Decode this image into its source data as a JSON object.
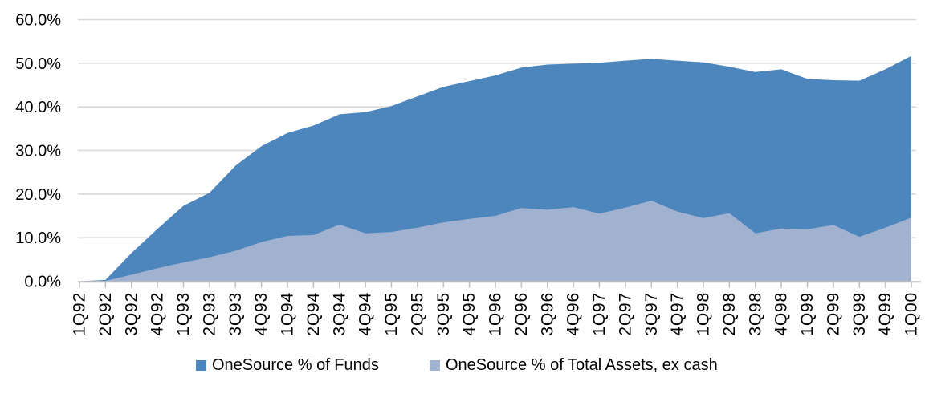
{
  "chart_data": {
    "type": "area",
    "title": "",
    "xlabel": "",
    "ylabel": "",
    "x_categories": [
      "1Q92",
      "2Q92",
      "3Q92",
      "4Q92",
      "1Q93",
      "2Q93",
      "3Q93",
      "4Q93",
      "1Q94",
      "2Q94",
      "3Q94",
      "4Q94",
      "1Q95",
      "2Q95",
      "3Q95",
      "4Q95",
      "1Q96",
      "2Q96",
      "3Q96",
      "4Q96",
      "1Q97",
      "2Q97",
      "3Q97",
      "4Q97",
      "1Q98",
      "2Q98",
      "3Q98",
      "4Q98",
      "1Q99",
      "2Q99",
      "3Q99",
      "4Q99",
      "1Q00"
    ],
    "series": [
      {
        "name": "OneSource % of Funds",
        "color": "#4D85BD",
        "values": [
          0.0,
          0.3,
          6.5,
          12.0,
          17.3,
          20.3,
          26.5,
          31.0,
          34.0,
          35.7,
          38.3,
          38.8,
          40.2,
          42.4,
          44.6,
          45.9,
          47.2,
          49.0,
          49.7,
          49.9,
          50.1,
          50.6,
          51.0,
          50.6,
          50.2,
          49.2,
          48.0,
          48.6,
          46.4,
          46.1,
          46.0,
          48.6,
          51.7
        ]
      },
      {
        "name": "OneSource % of Total Assets, ex cash",
        "color": "#A0B2D0",
        "values": [
          0.0,
          0.1,
          1.5,
          3.0,
          4.3,
          5.5,
          7.0,
          9.0,
          10.4,
          10.6,
          13.0,
          11.0,
          11.3,
          12.3,
          13.5,
          14.3,
          15.0,
          16.8,
          16.4,
          17.0,
          15.5,
          16.9,
          18.5,
          16.0,
          14.5,
          15.6,
          11.0,
          12.1,
          11.9,
          12.9,
          10.2,
          12.3,
          14.6
        ]
      }
    ],
    "y_tick_labels": [
      "0.0%",
      "10.0%",
      "20.0%",
      "30.0%",
      "40.0%",
      "50.0%",
      "60.0%"
    ],
    "ylim": [
      0,
      60
    ],
    "y_tick_step": 10,
    "grid": "horizontal",
    "legend_position": "bottom",
    "colors": {
      "gridline": "#D9D9D9",
      "axis": "#BFBFBF",
      "text": "#000000",
      "background": "#FFFFFF"
    }
  }
}
